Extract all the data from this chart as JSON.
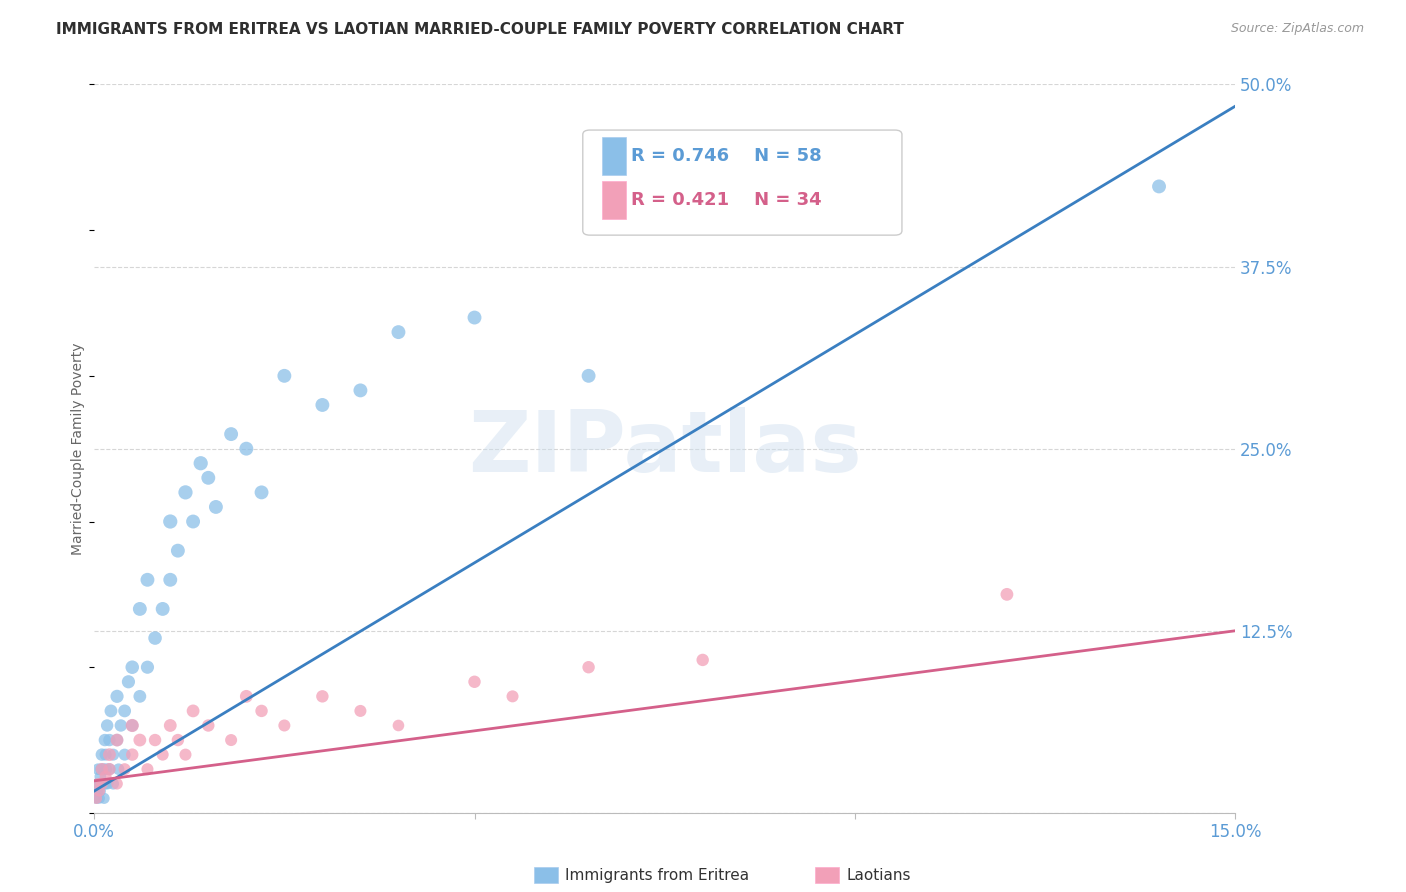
{
  "title": "IMMIGRANTS FROM ERITREA VS LAOTIAN MARRIED-COUPLE FAMILY POVERTY CORRELATION CHART",
  "source_text": "Source: ZipAtlas.com",
  "ylabel": "Married-Couple Family Poverty",
  "xmin": 0.0,
  "xmax": 0.15,
  "ymin": 0.0,
  "ymax": 0.5,
  "watermark": "ZIPatlas",
  "blue_line": [
    0.0,
    0.15,
    0.015,
    0.485
  ],
  "pink_line": [
    0.0,
    0.15,
    0.022,
    0.125
  ],
  "series": [
    {
      "name": "Immigrants from Eritrea",
      "R": 0.746,
      "N": 58,
      "color": "#8BBFE8",
      "line_color": "#3A7FC1",
      "x": [
        0.0002,
        0.0003,
        0.0004,
        0.0005,
        0.0005,
        0.0006,
        0.0007,
        0.0008,
        0.0008,
        0.0009,
        0.001,
        0.001,
        0.0012,
        0.0013,
        0.0014,
        0.0015,
        0.0015,
        0.0016,
        0.0017,
        0.0018,
        0.002,
        0.002,
        0.0022,
        0.0025,
        0.0025,
        0.003,
        0.003,
        0.0032,
        0.0035,
        0.004,
        0.004,
        0.0045,
        0.005,
        0.005,
        0.006,
        0.006,
        0.007,
        0.007,
        0.008,
        0.009,
        0.01,
        0.01,
        0.011,
        0.012,
        0.013,
        0.014,
        0.015,
        0.016,
        0.018,
        0.02,
        0.022,
        0.025,
        0.03,
        0.035,
        0.04,
        0.05,
        0.065,
        0.14
      ],
      "y": [
        0.01,
        0.02,
        0.01,
        0.03,
        0.015,
        0.02,
        0.01,
        0.025,
        0.015,
        0.03,
        0.02,
        0.04,
        0.03,
        0.01,
        0.05,
        0.02,
        0.04,
        0.03,
        0.06,
        0.02,
        0.05,
        0.03,
        0.07,
        0.04,
        0.02,
        0.05,
        0.08,
        0.03,
        0.06,
        0.04,
        0.07,
        0.09,
        0.06,
        0.1,
        0.08,
        0.14,
        0.1,
        0.16,
        0.12,
        0.14,
        0.16,
        0.2,
        0.18,
        0.22,
        0.2,
        0.24,
        0.23,
        0.21,
        0.26,
        0.25,
        0.22,
        0.3,
        0.28,
        0.29,
        0.33,
        0.34,
        0.3,
        0.43
      ],
      "sizes": [
        60,
        60,
        60,
        70,
        65,
        70,
        60,
        70,
        65,
        70,
        70,
        80,
        75,
        65,
        80,
        70,
        75,
        70,
        80,
        65,
        80,
        75,
        85,
        75,
        70,
        80,
        90,
        70,
        80,
        75,
        85,
        90,
        80,
        95,
        85,
        100,
        90,
        100,
        95,
        100,
        100,
        105,
        100,
        105,
        100,
        105,
        100,
        100,
        100,
        100,
        100,
        100,
        100,
        100,
        100,
        100,
        100,
        100
      ]
    },
    {
      "name": "Laotians",
      "R": 0.421,
      "N": 34,
      "color": "#F2A0B8",
      "line_color": "#D4608A",
      "x": [
        0.0003,
        0.0005,
        0.0007,
        0.001,
        0.001,
        0.0015,
        0.002,
        0.002,
        0.003,
        0.003,
        0.004,
        0.005,
        0.005,
        0.006,
        0.007,
        0.008,
        0.009,
        0.01,
        0.011,
        0.012,
        0.013,
        0.015,
        0.018,
        0.02,
        0.022,
        0.025,
        0.03,
        0.035,
        0.04,
        0.05,
        0.055,
        0.065,
        0.08,
        0.12
      ],
      "y": [
        0.01,
        0.02,
        0.015,
        0.03,
        0.02,
        0.025,
        0.04,
        0.03,
        0.05,
        0.02,
        0.03,
        0.04,
        0.06,
        0.05,
        0.03,
        0.05,
        0.04,
        0.06,
        0.05,
        0.04,
        0.07,
        0.06,
        0.05,
        0.08,
        0.07,
        0.06,
        0.08,
        0.07,
        0.06,
        0.09,
        0.08,
        0.1,
        0.105,
        0.15
      ],
      "sizes": [
        65,
        70,
        65,
        80,
        75,
        75,
        85,
        80,
        85,
        70,
        75,
        80,
        90,
        85,
        75,
        80,
        75,
        85,
        80,
        75,
        85,
        80,
        75,
        85,
        80,
        75,
        80,
        75,
        70,
        80,
        75,
        80,
        80,
        85
      ]
    }
  ],
  "background_color": "#FFFFFF",
  "grid_color": "#CCCCCC",
  "title_color": "#2F2F2F",
  "tick_label_color": "#5B9BD5",
  "ylabel_color": "#666666",
  "title_fontsize": 11,
  "axis_label_fontsize": 10,
  "tick_fontsize": 12,
  "legend_fontsize": 13
}
